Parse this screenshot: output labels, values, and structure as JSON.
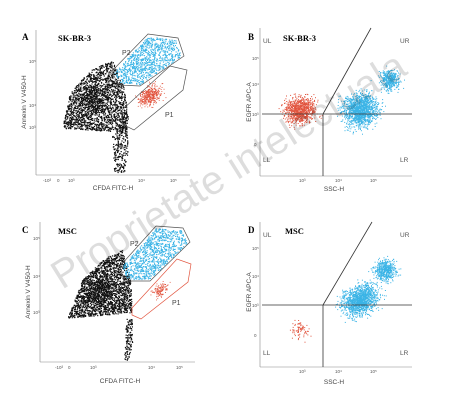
{
  "watermark": "Proprietate intelectuala",
  "colors": {
    "black": "#111111",
    "blue": "#3bb4e6",
    "red": "#e2553f",
    "gate": "#555555"
  },
  "chart_data": [
    {
      "panel": "A",
      "title": "SK-BR-3",
      "type": "scatter",
      "xlabel": "CFDA FITC-H",
      "ylabel": "Annexin V V450-H",
      "x_ticks": [
        "-10³",
        "0",
        "10³",
        "10⁴",
        "10⁵"
      ],
      "y_ticks": [
        "10⁵",
        "10⁴",
        "10³"
      ],
      "gates": [
        "P2",
        "P1"
      ]
    },
    {
      "panel": "B",
      "title": "SK-BR-3",
      "type": "scatter",
      "xlabel": "SSC-H",
      "ylabel": "EGFR APC-A",
      "x_ticks": [
        "10³",
        "10⁴",
        "10⁵"
      ],
      "y_ticks": [
        "10⁵",
        "10⁴",
        "10³",
        "0"
      ],
      "quadrants": [
        "UL",
        "UR",
        "LL",
        "LR"
      ]
    },
    {
      "panel": "C",
      "title": "MSC",
      "type": "scatter",
      "xlabel": "CFDA FITC-H",
      "ylabel": "Annexin V V450-H",
      "x_ticks": [
        "-10³",
        "0",
        "10³",
        "10⁴",
        "10⁵"
      ],
      "y_ticks": [
        "10⁵",
        "10⁴",
        "10³"
      ],
      "gates": [
        "P2",
        "P1"
      ]
    },
    {
      "panel": "D",
      "title": "MSC",
      "type": "scatter",
      "xlabel": "SSC-H",
      "ylabel": "EGFR APC-A",
      "x_ticks": [
        "10³",
        "10⁴",
        "10⁵"
      ],
      "y_ticks": [
        "10⁵",
        "10⁴",
        "10³",
        "0"
      ],
      "quadrants": [
        "UL",
        "UR",
        "LL",
        "LR"
      ]
    }
  ]
}
